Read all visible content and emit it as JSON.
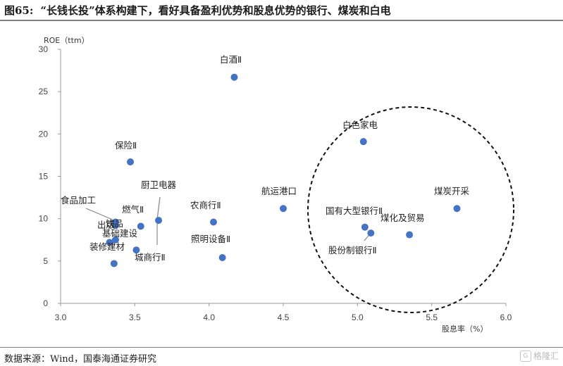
{
  "figure": {
    "number": "图65:",
    "title": "“长钱长投”体系构建下，看好具备盈利优势和股息优势的银行、煤炭和白电",
    "source": "数据来源：Wind，国泰海通证券研究",
    "watermark": "格隆汇"
  },
  "chart_data": {
    "type": "scatter",
    "title": "",
    "xlabel": "股息率（%）",
    "ylabel": "ROE（ttm）",
    "xlim": [
      3.0,
      6.0
    ],
    "ylim": [
      0,
      30
    ],
    "x_ticks": [
      "3.0",
      "3.5",
      "4.0",
      "4.5",
      "5.0",
      "5.5",
      "6.0"
    ],
    "y_ticks": [
      "0",
      "5",
      "10",
      "15",
      "20",
      "25",
      "30"
    ],
    "grid": false,
    "color": "#4472c4",
    "highlight_shape": "dashed circle around banks, coal and white goods",
    "points": [
      {
        "name": "白酒Ⅱ",
        "x": 4.17,
        "y": 26.7
      },
      {
        "name": "白色家电",
        "x": 5.04,
        "y": 19.1
      },
      {
        "name": "保险Ⅱ",
        "x": 3.47,
        "y": 16.7
      },
      {
        "name": "煤炭开采",
        "x": 5.67,
        "y": 11.2
      },
      {
        "name": "航运港口",
        "x": 4.5,
        "y": 11.2
      },
      {
        "name": "厨卫电器",
        "x": 3.66,
        "y": 9.8
      },
      {
        "name": "农商行Ⅱ",
        "x": 4.03,
        "y": 9.6
      },
      {
        "name": "食品加工",
        "x": 3.37,
        "y": 9.6
      },
      {
        "name": "燃气Ⅱ",
        "x": 3.54,
        "y": 9.1
      },
      {
        "name": "国有大型银行Ⅱ",
        "x": 5.05,
        "y": 9.0
      },
      {
        "name": "出版",
        "x": 3.37,
        "y": 9.2
      },
      {
        "name": "煤化及贸易",
        "x": 5.35,
        "y": 8.1
      },
      {
        "name": "股份制银行Ⅱ",
        "x": 5.09,
        "y": 8.3
      },
      {
        "name": "基础建设",
        "x": 3.37,
        "y": 7.5
      },
      {
        "name": "装修建材",
        "x": 3.33,
        "y": 7.2
      },
      {
        "name": "城商行Ⅱ",
        "x": 3.51,
        "y": 6.3
      },
      {
        "name": "照明设备Ⅱ",
        "x": 4.09,
        "y": 5.4
      },
      {
        "name": "饮品",
        "x": 3.36,
        "y": 4.7
      }
    ]
  }
}
